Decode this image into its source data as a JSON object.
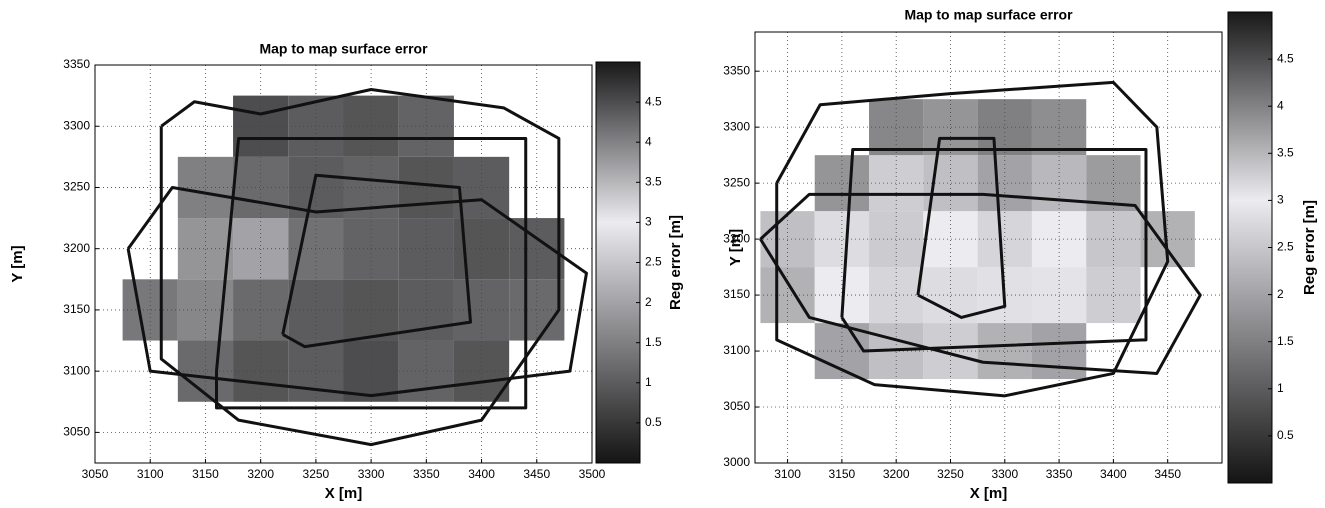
{
  "chart_data": [
    {
      "type": "heatmap",
      "title": "Map to map surface error",
      "xlabel": "X [m]",
      "ylabel": "Y [m]",
      "clabel": "Reg error [m]",
      "xlim": [
        3050,
        3500
      ],
      "xticks": [
        3050,
        3100,
        3150,
        3200,
        3250,
        3300,
        3350,
        3400,
        3450,
        3500
      ],
      "ylim": [
        3025,
        3350
      ],
      "yticks": [
        3050,
        3100,
        3150,
        3200,
        3250,
        3300,
        3350
      ],
      "clim": [
        0,
        5
      ],
      "cticks": [
        0.5,
        1,
        1.5,
        2,
        2.5,
        3,
        3.5,
        4,
        4.5
      ],
      "grid": true,
      "x": [
        3100,
        3150,
        3200,
        3250,
        3300,
        3350,
        3400,
        3450
      ],
      "y": [
        3100,
        3150,
        3200,
        3250,
        3300
      ],
      "z": [
        [
          null,
          1.2,
          0.9,
          1.0,
          0.8,
          1.1,
          0.9,
          null
        ],
        [
          1.4,
          1.6,
          1.2,
          1.0,
          0.9,
          1.0,
          1.1,
          1.2
        ],
        [
          null,
          1.8,
          2.0,
          1.3,
          1.1,
          1.0,
          0.9,
          1.0
        ],
        [
          null,
          1.5,
          1.2,
          1.0,
          1.1,
          0.9,
          1.0,
          null
        ],
        [
          null,
          null,
          0.8,
          1.0,
          0.9,
          1.1,
          null,
          null
        ]
      ],
      "tracks": [
        {
          "color": "#111111",
          "x": [
            3110,
            3140,
            3200,
            3300,
            3420,
            3470,
            3470,
            3400,
            3300,
            3180,
            3110,
            3110
          ],
          "y": [
            3300,
            3320,
            3310,
            3330,
            3315,
            3290,
            3150,
            3060,
            3040,
            3060,
            3110,
            3300
          ]
        },
        {
          "color": "#111111",
          "x": [
            3160,
            3180,
            3440,
            3440,
            3160,
            3160
          ],
          "y": [
            3100,
            3290,
            3290,
            3070,
            3070,
            3100
          ]
        },
        {
          "color": "#111111",
          "x": [
            3080,
            3120,
            3250,
            3400,
            3495,
            3480,
            3300,
            3100,
            3080
          ],
          "y": [
            3200,
            3250,
            3230,
            3240,
            3180,
            3100,
            3080,
            3100,
            3200
          ]
        },
        {
          "color": "#111111",
          "x": [
            3220,
            3250,
            3380,
            3390,
            3240,
            3220
          ],
          "y": [
            3130,
            3260,
            3250,
            3140,
            3120,
            3130
          ]
        }
      ]
    },
    {
      "type": "heatmap",
      "title": "Map to map surface error",
      "xlabel": "X [m]",
      "ylabel": "Y [m]",
      "clabel": "Reg error [m]",
      "xlim": [
        3070,
        3500
      ],
      "xticks": [
        3100,
        3150,
        3200,
        3250,
        3300,
        3350,
        3400,
        3450
      ],
      "ylim": [
        3000,
        3385
      ],
      "yticks": [
        3000,
        3050,
        3100,
        3150,
        3200,
        3250,
        3300,
        3350
      ],
      "clim": [
        0,
        5
      ],
      "cticks": [
        0.5,
        1,
        1.5,
        2,
        2.5,
        3,
        3.5,
        4,
        4.5
      ],
      "grid": true,
      "x": [
        3100,
        3150,
        3200,
        3250,
        3300,
        3350,
        3400,
        3450
      ],
      "y": [
        3100,
        3150,
        3200,
        3250,
        3300
      ],
      "z": [
        [
          null,
          2.0,
          2.4,
          2.6,
          2.2,
          2.0,
          null,
          null
        ],
        [
          2.2,
          3.0,
          3.2,
          2.8,
          3.1,
          2.9,
          2.6,
          null
        ],
        [
          2.4,
          2.8,
          3.3,
          3.0,
          2.7,
          3.0,
          2.5,
          2.2
        ],
        [
          null,
          1.8,
          2.6,
          2.4,
          2.0,
          2.3,
          1.9,
          null
        ],
        [
          null,
          null,
          1.6,
          1.8,
          1.5,
          1.7,
          null,
          null
        ]
      ],
      "tracks": [
        {
          "color": "#111111",
          "x": [
            3090,
            3130,
            3250,
            3400,
            3440,
            3450,
            3400,
            3300,
            3180,
            3090,
            3090
          ],
          "y": [
            3250,
            3320,
            3330,
            3340,
            3300,
            3180,
            3080,
            3060,
            3070,
            3110,
            3250
          ]
        },
        {
          "color": "#111111",
          "x": [
            3150,
            3160,
            3430,
            3430,
            3170,
            3150
          ],
          "y": [
            3130,
            3280,
            3280,
            3110,
            3100,
            3130
          ]
        },
        {
          "color": "#111111",
          "x": [
            3075,
            3120,
            3280,
            3420,
            3480,
            3440,
            3280,
            3120,
            3075
          ],
          "y": [
            3200,
            3240,
            3240,
            3230,
            3150,
            3080,
            3090,
            3130,
            3200
          ]
        },
        {
          "color": "#111111",
          "x": [
            3220,
            3240,
            3290,
            3300,
            3260,
            3220
          ],
          "y": [
            3150,
            3290,
            3290,
            3140,
            3130,
            3150
          ]
        }
      ]
    }
  ]
}
